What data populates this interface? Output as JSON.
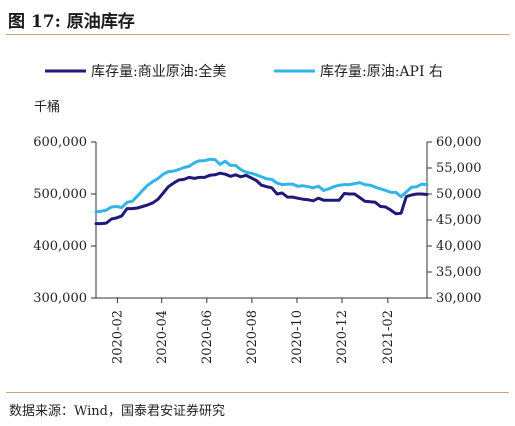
{
  "title": "图 17:  原油库存",
  "source": "数据来源：Wind，国泰君安证券研究",
  "colors": {
    "series1": "#1f1a7a",
    "series2": "#33b3e8",
    "axis": "#333333"
  },
  "chart_data": {
    "type": "line",
    "left_unit": "千桶",
    "y_left": {
      "min": 300000,
      "max": 600000,
      "ticks": [
        "300,000",
        "400,000",
        "500,000",
        "600,000"
      ],
      "tick_values": [
        300000,
        400000,
        500000,
        600000
      ]
    },
    "y_right": {
      "min": 30000,
      "max": 60000,
      "ticks": [
        "30,000",
        "35,000",
        "40,000",
        "45,000",
        "50,000",
        "55,000",
        "60,000"
      ],
      "tick_values": [
        30000,
        35000,
        40000,
        45000,
        50000,
        55000,
        60000
      ]
    },
    "x_range": [
      "2020-01-03",
      "2021-03-26"
    ],
    "x_ticks": [
      "2020-02",
      "2020-04",
      "2020-06",
      "2020-08",
      "2020-10",
      "2020-12",
      "2021-02"
    ],
    "grid": false,
    "legend_position": "top",
    "series": [
      {
        "name": "库存量:商业原油:全美",
        "axis": "left",
        "x": [
          "2020-01-03",
          "2020-01-10",
          "2020-01-17",
          "2020-01-24",
          "2020-01-31",
          "2020-02-07",
          "2020-02-14",
          "2020-02-21",
          "2020-02-28",
          "2020-03-06",
          "2020-03-13",
          "2020-03-20",
          "2020-03-27",
          "2020-04-03",
          "2020-04-10",
          "2020-04-17",
          "2020-04-24",
          "2020-05-01",
          "2020-05-08",
          "2020-05-15",
          "2020-05-22",
          "2020-05-29",
          "2020-06-05",
          "2020-06-12",
          "2020-06-19",
          "2020-06-26",
          "2020-07-03",
          "2020-07-10",
          "2020-07-17",
          "2020-07-24",
          "2020-07-31",
          "2020-08-07",
          "2020-08-14",
          "2020-08-21",
          "2020-08-28",
          "2020-09-04",
          "2020-09-11",
          "2020-09-18",
          "2020-09-25",
          "2020-10-02",
          "2020-10-09",
          "2020-10-16",
          "2020-10-23",
          "2020-10-30",
          "2020-11-06",
          "2020-11-13",
          "2020-11-20",
          "2020-11-27",
          "2020-12-04",
          "2020-12-11",
          "2020-12-18",
          "2020-12-25",
          "2021-01-01",
          "2021-01-08",
          "2021-01-15",
          "2021-01-22",
          "2021-01-29",
          "2021-02-05",
          "2021-02-12",
          "2021-02-19",
          "2021-02-26",
          "2021-03-05",
          "2021-03-12",
          "2021-03-19",
          "2021-03-26"
        ],
        "values": [
          443000,
          443000,
          444000,
          452000,
          454000,
          458000,
          472000,
          472000,
          473000,
          476000,
          479000,
          483000,
          490000,
          502000,
          514000,
          521000,
          527000,
          528000,
          532000,
          530000,
          532000,
          532000,
          536000,
          537000,
          540000,
          538000,
          534000,
          537000,
          533000,
          536000,
          531000,
          526000,
          517000,
          514000,
          512000,
          500000,
          502000,
          494000,
          494000,
          492000,
          490000,
          489000,
          487000,
          492000,
          488000,
          488000,
          488000,
          488000,
          501000,
          500000,
          500000,
          493000,
          486000,
          485000,
          484000,
          476000,
          475000,
          469000,
          462000,
          463000,
          495000,
          498000,
          500000,
          500000,
          499000
        ]
      },
      {
        "name": "库存量:原油:API 右",
        "axis": "right",
        "x": [
          "2020-01-03",
          "2020-01-10",
          "2020-01-17",
          "2020-01-24",
          "2020-01-31",
          "2020-02-07",
          "2020-02-14",
          "2020-02-21",
          "2020-02-28",
          "2020-03-06",
          "2020-03-13",
          "2020-03-20",
          "2020-03-27",
          "2020-04-03",
          "2020-04-10",
          "2020-04-17",
          "2020-04-24",
          "2020-05-01",
          "2020-05-08",
          "2020-05-15",
          "2020-05-22",
          "2020-05-29",
          "2020-06-05",
          "2020-06-12",
          "2020-06-19",
          "2020-06-26",
          "2020-07-03",
          "2020-07-10",
          "2020-07-17",
          "2020-07-24",
          "2020-07-31",
          "2020-08-07",
          "2020-08-14",
          "2020-08-21",
          "2020-08-28",
          "2020-09-04",
          "2020-09-11",
          "2020-09-18",
          "2020-09-25",
          "2020-10-02",
          "2020-10-09",
          "2020-10-16",
          "2020-10-23",
          "2020-10-30",
          "2020-11-06",
          "2020-11-13",
          "2020-11-20",
          "2020-11-27",
          "2020-12-04",
          "2020-12-11",
          "2020-12-18",
          "2020-12-25",
          "2021-01-01",
          "2021-01-08",
          "2021-01-15",
          "2021-01-22",
          "2021-01-29",
          "2021-02-05",
          "2021-02-12",
          "2021-02-19",
          "2021-02-26",
          "2021-03-05",
          "2021-03-12",
          "2021-03-19",
          "2021-03-26"
        ],
        "values": [
          46600,
          46700,
          46900,
          47500,
          47600,
          47400,
          48400,
          48600,
          49600,
          50700,
          51700,
          52400,
          53000,
          53800,
          54300,
          54400,
          54700,
          55100,
          55300,
          56000,
          56400,
          56400,
          56700,
          56600,
          55700,
          56300,
          55500,
          55500,
          54700,
          54200,
          54000,
          53700,
          53300,
          52900,
          52800,
          52100,
          51800,
          51900,
          51900,
          51500,
          51600,
          51400,
          51200,
          51500,
          50700,
          51000,
          51400,
          51700,
          51800,
          51800,
          52000,
          52200,
          51800,
          51700,
          51300,
          51000,
          50700,
          50300,
          50300,
          49500,
          50400,
          51300,
          51400,
          51900,
          51800
        ]
      }
    ]
  }
}
